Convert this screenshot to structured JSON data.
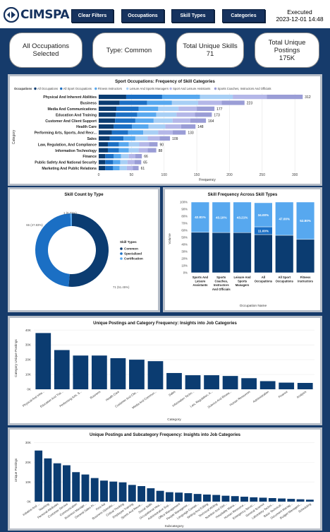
{
  "header": {
    "logo_text": "CIMSPA",
    "clear_filters": "Clear Filters",
    "occupations": "Occupations",
    "skill_types": "Skill Types",
    "categories": "Categories",
    "executed_label": "Executed",
    "executed_time": "2023-12-01 14:48"
  },
  "kpis": {
    "occupations": "All Occupations Selected",
    "type": "Type: Common",
    "skills_label": "Total Unique Skills",
    "skills_value": "71",
    "postings_label": "Total Unique Postings",
    "postings_value": "175K"
  },
  "colors": {
    "navy": "#0b3c71",
    "blue": "#1b6fc4",
    "light": "#57a8ef",
    "pale": "#a8cff5",
    "lavender": "#b4b7e8",
    "violet": "#9a9dd6"
  },
  "chart_data": [
    {
      "id": "sport_occ",
      "type": "bar",
      "orientation": "horizontal",
      "stacked": true,
      "title": "Sport Occupations: Frequency of Skill Categories",
      "legend_title": "Occupations",
      "xlabel": "Frequency",
      "ylabel": "Category",
      "xlim": [
        0,
        330
      ],
      "xticks": [
        0,
        50,
        100,
        150,
        200,
        250,
        300
      ],
      "categories": [
        "Physical And Inherent Abilities",
        "Business",
        "Media And Communications",
        "Education And Training",
        "Customer And Client Support",
        "Health Care",
        "Performing Arts, Sports, And Recr...",
        "Sales",
        "Law, Regulation, And Compliance",
        "Information Technology",
        "Finance",
        "Public Safety And National Security",
        "Marketing And Public Relations"
      ],
      "totals": [
        312,
        223,
        177,
        173,
        164,
        148,
        133,
        109,
        90,
        88,
        66,
        65,
        61
      ],
      "series": [
        {
          "name": "All Occupations",
          "values": [
            42,
            32,
            27,
            26,
            25,
            23,
            20,
            17,
            14,
            14,
            10,
            10,
            10
          ]
        },
        {
          "name": "All Sport Occupations",
          "values": [
            55,
            42,
            34,
            33,
            31,
            28,
            25,
            21,
            17,
            17,
            13,
            12,
            12
          ]
        },
        {
          "name": "Fitness Instructors",
          "values": [
            58,
            38,
            30,
            29,
            28,
            25,
            23,
            18,
            15,
            15,
            11,
            11,
            10
          ]
        },
        {
          "name": "Leisure And Sports Managers",
          "values": [
            50,
            40,
            31,
            31,
            29,
            26,
            23,
            19,
            16,
            15,
            12,
            11,
            11
          ]
        },
        {
          "name": "Sport And Leisure Assistants",
          "values": [
            52,
            36,
            28,
            28,
            27,
            24,
            22,
            18,
            15,
            14,
            10,
            11,
            9
          ]
        },
        {
          "name": "Sports Coaches, Instructors And Officials",
          "values": [
            55,
            35,
            27,
            26,
            24,
            22,
            20,
            16,
            13,
            13,
            10,
            10,
            9
          ]
        }
      ]
    },
    {
      "id": "skill_count",
      "type": "pie",
      "donut": true,
      "title": "Skill Count by Type",
      "legend_title": "Skill Types",
      "labels": [
        "Common",
        "Specialized",
        "Certification"
      ],
      "values": [
        71,
        66,
        1
      ],
      "data_labels": [
        "71 (51.45%)",
        "66 (47.83%)",
        "1 (0.72%)"
      ]
    },
    {
      "id": "skill_freq",
      "type": "bar",
      "stacked": true,
      "percent": true,
      "title": "Skill Frequency Across Skill Types",
      "xlabel": "Occupation Name",
      "ylabel": "Volume",
      "ylim": [
        0,
        100
      ],
      "yticks": [
        "0%",
        "10%",
        "20%",
        "30%",
        "40%",
        "50%",
        "60%",
        "70%",
        "80%",
        "90%",
        "100%"
      ],
      "categories": [
        "Sports And Leisure Assistants",
        "Sports Coaches, Instructors And Officials",
        "Leisure And Sports Managers",
        "All Occupations",
        "All Sport Occupations",
        "Fitness Instructors"
      ],
      "series": [
        {
          "name": "Common",
          "values": [
            57.19,
            56.9,
            56.79,
            54.0,
            53.0,
            47.2
          ]
        },
        {
          "name": "Certification",
          "values": [
            0,
            0,
            0,
            11.0,
            0,
            0
          ]
        },
        {
          "name": "Specialized",
          "values": [
            42.81,
            43.1,
            43.21,
            34.0,
            47.0,
            52.8
          ]
        }
      ],
      "data_labels": {
        "Common": [
          "",
          "",
          "",
          "",
          "",
          ""
        ],
        "Certification": [
          "",
          "",
          "",
          "11.00%",
          "",
          ""
        ],
        "Specialized": [
          "42.81%",
          "43.10%",
          "43.21%",
          "34.00%",
          "47.00%",
          "52.80%"
        ]
      }
    },
    {
      "id": "postings_cat",
      "type": "bar",
      "title": "Unique Postings and Category Frequency: Insights into Job Categories",
      "xlabel": "Category",
      "ylabel": "Category Unique Postings",
      "ylim": [
        0,
        42000
      ],
      "yticks": [
        "0K",
        "10K",
        "20K",
        "30K",
        "40K"
      ],
      "categories": [
        "Physical And Inhe...",
        "Education And Trai...",
        "Performing Arts, S...",
        "Business",
        "Health Care",
        "Customer And Clie...",
        "Media And Commun...",
        "Sales",
        "Information Techn...",
        "Law, Regulation, A...",
        "Science And Resea...",
        "Human Resources",
        "Administration",
        "Finance",
        "Analysis"
      ],
      "values": [
        38000,
        26500,
        22800,
        22800,
        21000,
        20000,
        19000,
        11000,
        9500,
        9500,
        9000,
        7500,
        5500,
        4500,
        4300
      ]
    },
    {
      "id": "postings_subcat",
      "type": "bar",
      "title": "Unique Postings and Subcategory Frequency: Insights into Job Categories",
      "xlabel": "Subcategory",
      "ylabel": "Unique Postings",
      "ylim": [
        0,
        32000
      ],
      "yticks": [
        "0K",
        "10K",
        "20K",
        "30K"
      ],
      "categories": [
        "Initiative And ...",
        "Teaching",
        "Personal Attributes",
        "Customer Service",
        "Communication",
        "Business Manage...",
        "General Sales Pr...",
        "First Aid",
        "Business Operatio...",
        "Critical Thinking",
        "Employee Training",
        "Sports And Recre...",
        "Social Skills",
        "Occupational Hea...",
        "Administrative Sup...",
        "Office Management",
        "People Manageme...",
        "Language Compe...",
        "Writing And Editing",
        "Technical Writing",
        "Nutrition And Diet...",
        "Hospitality Mana...",
        "Human Resource...",
        "Emergency Servic...",
        "General Science",
        "Laboratory Techni...",
        "Basic Technical...",
        "Document Manag...",
        "Budget Managem...",
        "Scheduling"
      ],
      "values": [
        26000,
        22000,
        19500,
        18500,
        15000,
        13800,
        12000,
        10700,
        10200,
        9800,
        8500,
        7900,
        6800,
        5500,
        4800,
        4600,
        4300,
        3900,
        3600,
        3400,
        3000,
        2800,
        2500,
        2200,
        2000,
        1800,
        1600,
        1400,
        1200,
        1000
      ]
    }
  ]
}
